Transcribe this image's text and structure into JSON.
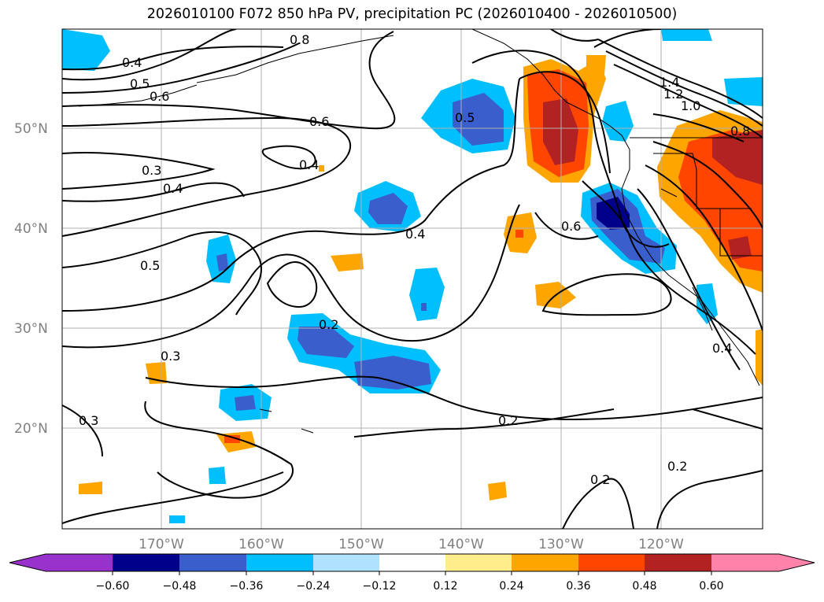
{
  "title": "2026010100 F072 850 hPa PV, precipitation PC (2026010400 - 2026010500)",
  "lat_labels": [
    "50°N",
    "40°N",
    "30°N",
    "20°N"
  ],
  "lon_labels": [
    "170°W",
    "160°W",
    "150°W",
    "140°W",
    "130°W",
    "120°W"
  ],
  "colorbar": {
    "colors": [
      "#9932cc",
      "#00008b",
      "#3a5fcd",
      "#00bfff",
      "#b0e2ff",
      "#ffffff",
      "#ffec8b",
      "#ffa500",
      "#ff4500",
      "#b22222",
      "#ff82ab"
    ],
    "tick_labels": [
      "−0.60",
      "−0.48",
      "−0.36",
      "−0.24",
      "−0.12",
      "0.12",
      "0.24",
      "0.36",
      "0.48",
      "0.60"
    ]
  },
  "contour_labels": [
    "0.8",
    "0.4",
    "0.5",
    "0.6",
    "0.6",
    "0.4",
    "0.3",
    "0.4",
    "0.5",
    "0.5",
    "0.4",
    "0.2",
    "0.3",
    "0.3",
    "0.2",
    "0.2",
    "0.2",
    "0.6",
    "1.4",
    "1.2",
    "1.0",
    "0.8",
    "0.4"
  ]
}
